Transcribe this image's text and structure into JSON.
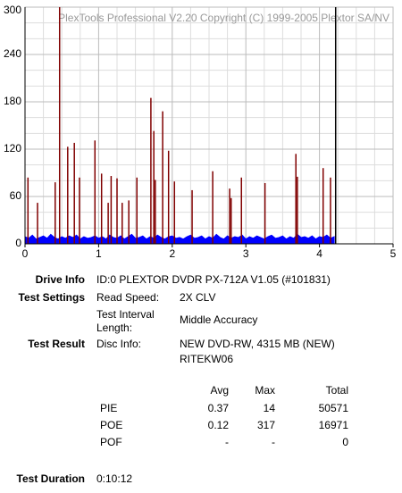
{
  "chart_data": {
    "type": "bar",
    "annotation": "PlexTools Professional V2.20 Copyright (C) 1999-2005 Plextor SA/NV",
    "xlim": [
      0,
      5
    ],
    "xticks": [
      0,
      1,
      2,
      3,
      4,
      5
    ],
    "ylim": [
      0,
      300
    ],
    "yticks": [
      0,
      60,
      120,
      180,
      240,
      300
    ],
    "xgrid": [
      0.25,
      0.5,
      0.75,
      1.25,
      1.5,
      1.75,
      2.25,
      2.5,
      2.75,
      3.25,
      3.5,
      3.75,
      4.25,
      4.5,
      4.75
    ],
    "ygrid": [
      20,
      40,
      80,
      100,
      140,
      160,
      200,
      220,
      260,
      280
    ],
    "grid": true,
    "end_x": 4.22,
    "end_color": "#000000",
    "series": [
      {
        "color": "#0000ff",
        "style": "area",
        "x": [
          0,
          0.05,
          0.1,
          0.15,
          0.2,
          0.25,
          0.3,
          0.35,
          0.4,
          0.45,
          0.5,
          0.55,
          0.6,
          0.65,
          0.7,
          0.75,
          0.8,
          0.85,
          0.9,
          0.95,
          1,
          1.05,
          1.1,
          1.15,
          1.2,
          1.25,
          1.3,
          1.35,
          1.4,
          1.45,
          1.5,
          1.55,
          1.6,
          1.65,
          1.7,
          1.75,
          1.8,
          1.85,
          1.9,
          1.95,
          2,
          2.05,
          2.1,
          2.15,
          2.2,
          2.25,
          2.3,
          2.35,
          2.4,
          2.45,
          2.5,
          2.55,
          2.6,
          2.65,
          2.7,
          2.75,
          2.8,
          2.85,
          2.9,
          2.95,
          3,
          3.05,
          3.1,
          3.15,
          3.2,
          3.25,
          3.3,
          3.35,
          3.4,
          3.45,
          3.5,
          3.55,
          3.6,
          3.65,
          3.7,
          3.75,
          3.8,
          3.85,
          3.9,
          3.95,
          4,
          4.05,
          4.1,
          4.15,
          4.2
        ],
        "values": [
          9,
          7,
          11,
          6,
          8,
          10,
          7,
          12,
          8,
          6,
          9,
          7,
          10,
          8,
          11,
          6,
          9,
          7,
          8,
          10,
          7,
          9,
          6,
          11,
          8,
          7,
          10,
          6,
          9,
          12,
          7,
          8,
          10,
          6,
          9,
          7,
          11,
          8,
          6,
          9,
          10,
          7,
          8,
          6,
          9,
          11,
          7,
          8,
          10,
          6,
          9,
          7,
          12,
          8,
          6,
          10,
          7,
          9,
          8,
          11,
          6,
          9,
          7,
          10,
          8,
          6,
          9,
          11,
          7,
          8,
          10,
          6,
          9,
          7,
          12,
          8,
          9,
          7,
          10,
          6,
          9,
          8,
          11,
          7,
          9
        ]
      },
      {
        "color": "#800000",
        "style": "stems",
        "x": [
          0.04,
          0.17,
          0.41,
          0.47,
          0.58,
          0.67,
          0.74,
          0.95,
          1.04,
          1.13,
          1.17,
          1.25,
          1.32,
          1.41,
          1.52,
          1.71,
          1.75,
          1.77,
          1.87,
          1.95,
          2.03,
          2.27,
          2.55,
          2.78,
          2.8,
          2.94,
          3.26,
          3.68,
          3.7,
          4.05,
          4.15
        ],
        "values": [
          84,
          52,
          78,
          300,
          123,
          128,
          84,
          131,
          89,
          52,
          86,
          83,
          52,
          55,
          84,
          185,
          143,
          81,
          168,
          118,
          79,
          68,
          92,
          70,
          58,
          84,
          77,
          114,
          85,
          96,
          84
        ]
      }
    ]
  },
  "info": {
    "drive_label": "Drive Info",
    "drive": "ID:0 PLEXTOR DVDR PX-712A V1.05 (#101831)",
    "settings_label": "Test Settings",
    "speed_label": "Read Speed:",
    "speed": "2X CLV",
    "interval_label_1": "Test Interval",
    "interval_label_2": "Length:",
    "interval": "Middle Accuracy",
    "result_label": "Test Result",
    "disc_label": "Disc Info:",
    "disc_1": "NEW DVD-RW, 4315 MB (NEW)",
    "disc_2": "RITEKW06",
    "duration_label": "Test Duration",
    "duration": "0:10:12"
  },
  "table": {
    "header": [
      "Avg",
      "Max",
      "Total"
    ],
    "rows": [
      [
        "PIE",
        "0.37",
        "14",
        "50571"
      ],
      [
        "POE",
        "0.12",
        "317",
        "16971"
      ],
      [
        "POF",
        "-",
        "-",
        "0"
      ]
    ]
  }
}
